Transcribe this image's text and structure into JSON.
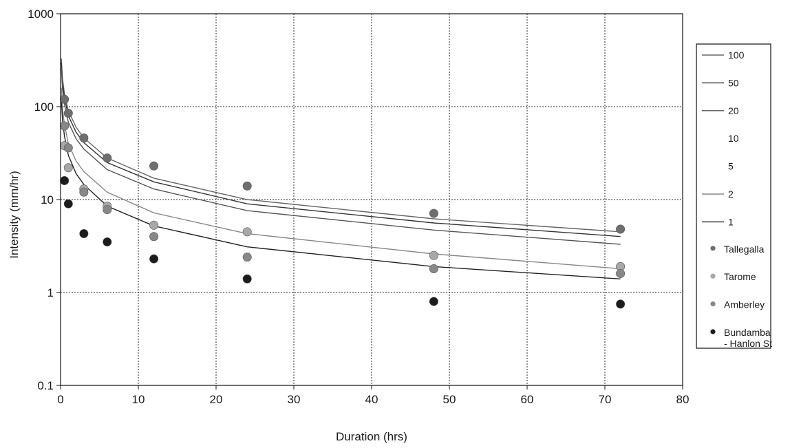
{
  "chart_data": {
    "type": "scatter",
    "title": "",
    "xlabel": "Duration (hrs)",
    "ylabel": "Intensity (mm/hr)",
    "xlim": [
      0,
      80
    ],
    "ylim": [
      0.1,
      1000
    ],
    "yscale": "log",
    "grid": true,
    "legend_position": "right",
    "x_ticks": [
      "0",
      "10",
      "20",
      "30",
      "40",
      "50",
      "60",
      "70",
      "80"
    ],
    "y_ticks": [
      "0.1",
      "1",
      "10",
      "100",
      "1000"
    ],
    "curves": [
      {
        "name": "100",
        "color": "#666666",
        "x": [
          0.1,
          0.25,
          0.5,
          1,
          2,
          3,
          6,
          12,
          24,
          48,
          72
        ],
        "values": [
          330,
          200,
          138,
          90,
          60,
          46,
          28,
          17,
          10,
          6.2,
          4.5
        ]
      },
      {
        "name": "50",
        "color": "#333333",
        "x": [
          0.1,
          0.25,
          0.5,
          1,
          2,
          3,
          6,
          12,
          24,
          48,
          72
        ],
        "values": [
          300,
          180,
          124,
          80,
          53,
          41,
          25,
          15.5,
          9,
          5.6,
          4.0
        ]
      },
      {
        "name": "20",
        "color": "#555555",
        "x": [
          0.1,
          0.25,
          0.5,
          1,
          2,
          3,
          6,
          12,
          24,
          48,
          72
        ],
        "values": [
          260,
          155,
          106,
          68,
          45,
          35,
          21,
          13,
          7.6,
          4.7,
          3.3
        ]
      },
      {
        "name": "10",
        "color": "#ffffff",
        "x": [],
        "values": []
      },
      {
        "name": "5",
        "color": "#ffffff",
        "x": [],
        "values": []
      },
      {
        "name": "2",
        "color": "#888888",
        "x": [
          0.1,
          0.25,
          0.5,
          1,
          2,
          3,
          6,
          12,
          24,
          48,
          72
        ],
        "values": [
          160,
          95,
          64,
          40,
          26,
          20,
          12,
          7.2,
          4.3,
          2.6,
          1.8
        ]
      },
      {
        "name": "1",
        "color": "#222222",
        "x": [
          0.1,
          0.25,
          0.5,
          1,
          2,
          3,
          6,
          12,
          24,
          48,
          72
        ],
        "values": [
          120,
          72,
          48,
          30,
          19,
          14.5,
          8.5,
          5.2,
          3.1,
          1.9,
          1.4
        ]
      }
    ],
    "series": [
      {
        "name": "Tallegalla",
        "color": "#6e6e6e",
        "x": [
          0.5,
          1,
          3,
          6,
          12,
          24,
          48,
          72
        ],
        "values": [
          120,
          85,
          46,
          28,
          23,
          14,
          7.1,
          4.8
        ]
      },
      {
        "name": "Tarome",
        "color": "#a8a8a8",
        "x": [
          0.5,
          1,
          3,
          6,
          12,
          24,
          48,
          72
        ],
        "values": [
          38,
          22,
          13,
          8.5,
          5.3,
          4.5,
          2.5,
          1.9
        ]
      },
      {
        "name": "Amberley",
        "color": "#888888",
        "x": [
          0.5,
          1,
          3,
          6,
          12,
          24,
          48,
          72
        ],
        "values": [
          62,
          36,
          12,
          7.8,
          4.0,
          2.4,
          1.8,
          1.6
        ]
      },
      {
        "name": "Bundamba - Hanlon St",
        "legend_lines": [
          "Bundamba",
          "- Hanlon St"
        ],
        "color": "#1c1c1c",
        "x": [
          0.5,
          1,
          3,
          6,
          12,
          24,
          48,
          72
        ],
        "values": [
          16,
          9,
          4.3,
          3.5,
          2.3,
          1.4,
          0.8,
          0.75
        ]
      }
    ]
  }
}
